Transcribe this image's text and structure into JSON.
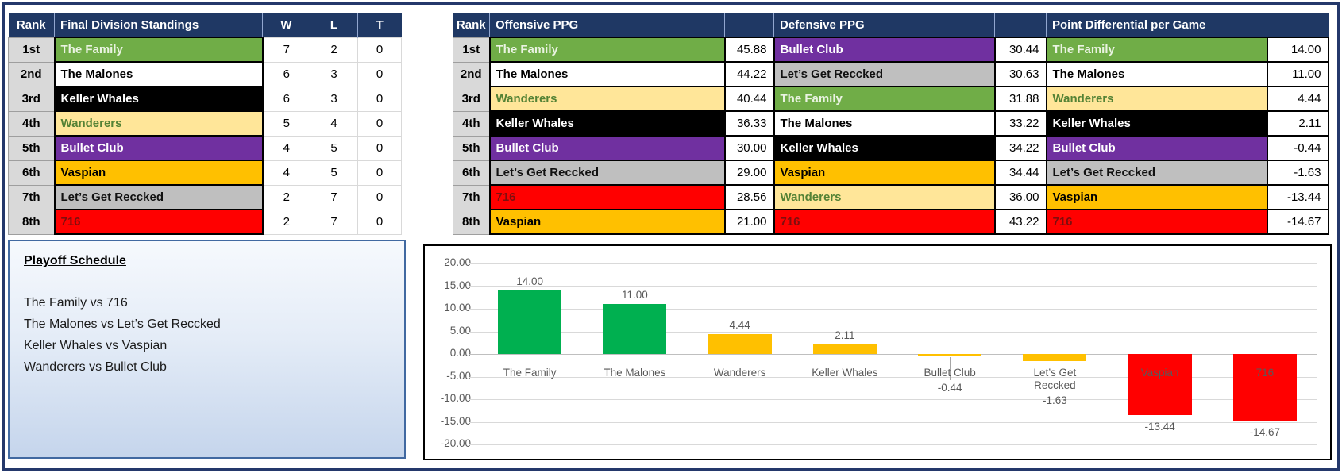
{
  "colors": {
    "frame_border": "#24386B",
    "header_bg": "#1F3864",
    "header_fg": "#FFFFFF",
    "rank_cell_bg": "#D9D9D9",
    "grid_line": "#D9D9D9",
    "axis_text": "#595959",
    "playoff_border": "#4169A1",
    "chart_green": "#00B050",
    "chart_gold": "#FFC000",
    "chart_red": "#FF0000"
  },
  "team_styles": {
    "The Family": {
      "bg": "#70AD47",
      "fg": "#EAF3E2"
    },
    "The Malones": {
      "bg": "#FFFFFF",
      "fg": "#000000"
    },
    "Keller Whales": {
      "bg": "#000000",
      "fg": "#FFFFFF"
    },
    "Wanderers": {
      "bg": "#FFE699",
      "fg": "#548235"
    },
    "Bullet Club": {
      "bg": "#7030A0",
      "fg": "#FFFFFF"
    },
    "Vaspian": {
      "bg": "#FFC000",
      "fg": "#000000"
    },
    "Let’s Get Reccked": {
      "bg": "#BFBFBF",
      "fg": "#111111"
    },
    "716": {
      "bg": "#FF0000",
      "fg": "#7F0E0E"
    }
  },
  "standings": {
    "headers": {
      "rank": "Rank",
      "title": "Final Division Standings",
      "w": "W",
      "l": "L",
      "t": "T"
    },
    "rows": [
      {
        "rank": "1st",
        "team": "The Family",
        "w": "7",
        "l": "2",
        "t": "0"
      },
      {
        "rank": "2nd",
        "team": "The Malones",
        "w": "6",
        "l": "3",
        "t": "0"
      },
      {
        "rank": "3rd",
        "team": "Keller Whales",
        "w": "6",
        "l": "3",
        "t": "0"
      },
      {
        "rank": "4th",
        "team": "Wanderers",
        "w": "5",
        "l": "4",
        "t": "0"
      },
      {
        "rank": "5th",
        "team": "Bullet Club",
        "w": "4",
        "l": "5",
        "t": "0"
      },
      {
        "rank": "6th",
        "team": "Vaspian",
        "w": "4",
        "l": "5",
        "t": "0"
      },
      {
        "rank": "7th",
        "team": "Let’s Get Reccked",
        "w": "2",
        "l": "7",
        "t": "0"
      },
      {
        "rank": "8th",
        "team": "716",
        "w": "2",
        "l": "7",
        "t": "0"
      }
    ]
  },
  "stats": {
    "rank_header": "Rank",
    "ranks": [
      "1st",
      "2nd",
      "3rd",
      "4th",
      "5th",
      "6th",
      "7th",
      "8th"
    ],
    "columns": [
      {
        "header": "Offensive PPG",
        "rows": [
          {
            "team": "The Family",
            "value": "45.88"
          },
          {
            "team": "The Malones",
            "value": "44.22"
          },
          {
            "team": "Wanderers",
            "value": "40.44"
          },
          {
            "team": "Keller Whales",
            "value": "36.33"
          },
          {
            "team": "Bullet Club",
            "value": "30.00"
          },
          {
            "team": "Let’s Get Reccked",
            "value": "29.00"
          },
          {
            "team": "716",
            "value": "28.56"
          },
          {
            "team": "Vaspian",
            "value": "21.00"
          }
        ]
      },
      {
        "header": "Defensive PPG",
        "rows": [
          {
            "team": "Bullet Club",
            "value": "30.44"
          },
          {
            "team": "Let’s Get Reccked",
            "value": "30.63"
          },
          {
            "team": "The Family",
            "value": "31.88"
          },
          {
            "team": "The Malones",
            "value": "33.22"
          },
          {
            "team": "Keller Whales",
            "value": "34.22"
          },
          {
            "team": "Vaspian",
            "value": "34.44"
          },
          {
            "team": "Wanderers",
            "value": "36.00"
          },
          {
            "team": "716",
            "value": "43.22"
          }
        ]
      },
      {
        "header": "Point Differential per Game",
        "rows": [
          {
            "team": "The Family",
            "value": "14.00"
          },
          {
            "team": "The Malones",
            "value": "11.00"
          },
          {
            "team": "Wanderers",
            "value": "4.44"
          },
          {
            "team": "Keller Whales",
            "value": "2.11"
          },
          {
            "team": "Bullet Club",
            "value": "-0.44"
          },
          {
            "team": "Let’s Get Reccked",
            "value": "-1.63"
          },
          {
            "team": "Vaspian",
            "value": "-13.44"
          },
          {
            "team": "716",
            "value": "-14.67"
          }
        ]
      }
    ]
  },
  "playoff": {
    "title": "Playoff Schedule",
    "matchups": [
      "The Family vs 716",
      "The Malones vs Let’s Get Reccked",
      "Keller Whales vs Vaspian",
      "Wanderers vs Bullet Club"
    ]
  },
  "chart_data": {
    "type": "bar",
    "title": "",
    "categories": [
      "The Family",
      "The Malones",
      "Wanderers",
      "Keller Whales",
      "Bullet Club",
      "Let’s Get Reccked",
      "Vaspian",
      "716"
    ],
    "values": [
      14.0,
      11.0,
      4.44,
      2.11,
      -0.44,
      -1.63,
      -13.44,
      -14.67
    ],
    "value_labels": [
      "14.00",
      "11.00",
      "4.44",
      "2.11",
      "-0.44",
      "-1.63",
      "-13.44",
      "-14.67"
    ],
    "bar_colors": [
      "#00B050",
      "#00B050",
      "#FFC000",
      "#FFC000",
      "#FFC000",
      "#FFC000",
      "#FF0000",
      "#FF0000"
    ],
    "xlabel": "",
    "ylabel": "",
    "ylim": [
      -20,
      20
    ],
    "ytick_step": 5,
    "yticks": [
      "20.00",
      "15.00",
      "10.00",
      "5.00",
      "0.00",
      "-5.00",
      "-10.00",
      "-15.00",
      "-20.00"
    ],
    "grid": true,
    "legend": null
  }
}
